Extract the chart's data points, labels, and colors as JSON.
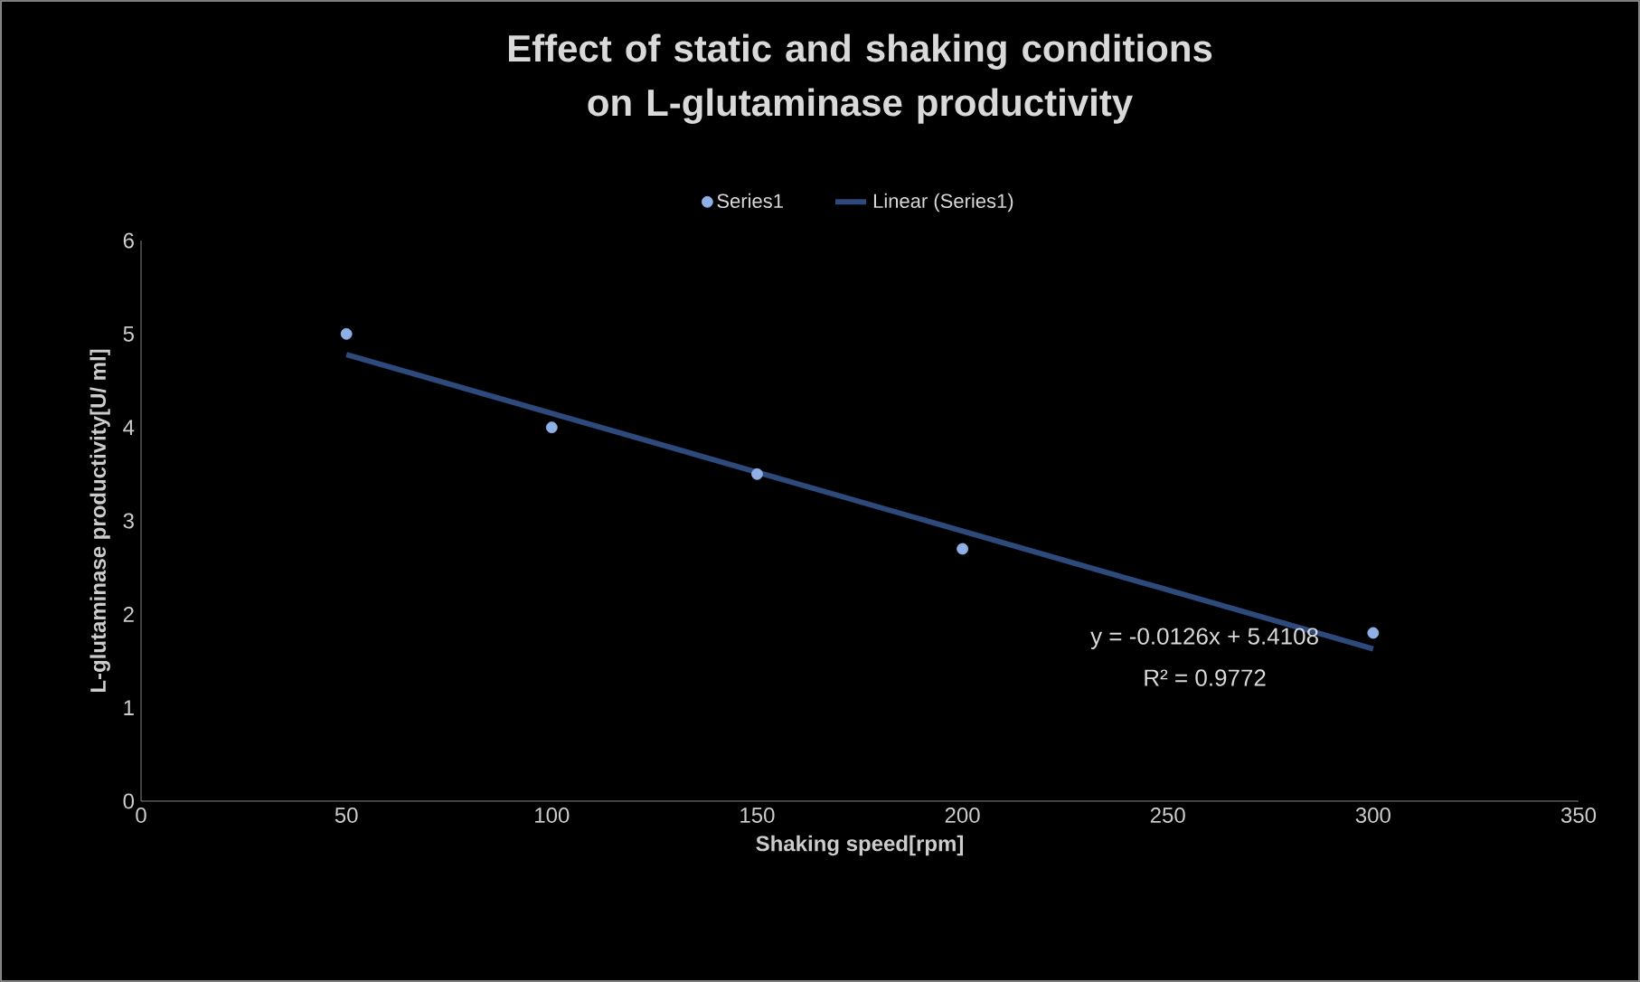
{
  "chart_data": {
    "type": "scatter",
    "title": "Effect of static and shaking conditions on L-glutaminase productivity",
    "xlabel": "Shaking speed[rpm]",
    "ylabel": "L-glutaminase productivity[U/ ml]",
    "series": [
      {
        "name": "Series1",
        "color": "#8fb0e6",
        "x": [
          50,
          100,
          150,
          200,
          300
        ],
        "values": [
          5,
          4,
          3.5,
          2.7,
          1.8
        ],
        "marker": "circle"
      },
      {
        "name": "Linear (Series1)",
        "type": "line",
        "color": "#2e4a7d",
        "x": [
          50,
          300
        ],
        "values": [
          4.78,
          1.63
        ],
        "marker": "none",
        "line_style": "solid"
      }
    ],
    "annotations": [
      "y = -0.0126x + 5.4108",
      "R² = 0.9772"
    ],
    "xlim": [
      0,
      350
    ],
    "xticks": [
      0,
      50,
      100,
      150,
      200,
      250,
      300,
      350
    ],
    "ylim": [
      0,
      6
    ],
    "yticks": [
      0,
      1,
      2,
      3,
      4,
      5,
      6
    ],
    "legend": "top",
    "grid": false
  }
}
